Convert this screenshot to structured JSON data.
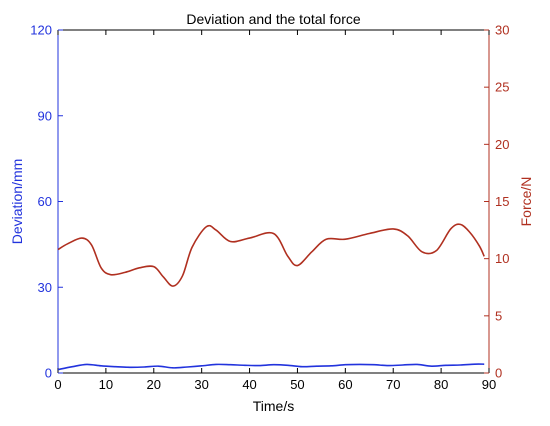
{
  "chart_data": {
    "type": "line",
    "title": "Deviation and the total force",
    "xlabel": "Time/s",
    "ylabel_left": "Deviation/mm",
    "ylabel_right": "Force/N",
    "xlim": [
      0,
      90
    ],
    "ylim_left": [
      0,
      120
    ],
    "ylim_right": [
      0,
      30
    ],
    "x_ticks": [
      0,
      10,
      20,
      30,
      40,
      50,
      60,
      70,
      80,
      90
    ],
    "y_left_ticks": [
      0,
      30,
      60,
      90,
      120
    ],
    "y_right_ticks": [
      0,
      5,
      10,
      15,
      20,
      25,
      30
    ],
    "grid": false,
    "colors": {
      "left_axis": "#2233dd",
      "right_axis": "#b03020",
      "deviation": "#2233dd",
      "force": "#b03020"
    },
    "series": [
      {
        "axis": "left",
        "x": [
          0,
          3,
          6,
          9,
          12,
          15,
          18,
          21,
          24,
          27,
          30,
          33,
          36,
          39,
          42,
          45,
          48,
          51,
          54,
          57,
          60,
          63,
          66,
          69,
          72,
          75,
          78,
          81,
          84,
          87,
          89
        ],
        "values": [
          1.2,
          2.2,
          3.0,
          2.5,
          2.2,
          2.0,
          2.1,
          2.4,
          1.8,
          2.1,
          2.5,
          3.0,
          2.9,
          2.7,
          2.6,
          2.9,
          2.7,
          2.2,
          2.4,
          2.5,
          2.9,
          3.0,
          2.9,
          2.6,
          2.8,
          3.0,
          2.4,
          2.7,
          2.8,
          3.1,
          3.1
        ]
      },
      {
        "axis": "right",
        "x": [
          0,
          2,
          5,
          7,
          9,
          11,
          14,
          17,
          20,
          22,
          24,
          26,
          28,
          31,
          33,
          36,
          40,
          45,
          48,
          50,
          53,
          56,
          60,
          65,
          70,
          73,
          76,
          79,
          82,
          84,
          86,
          88,
          89
        ],
        "values": [
          10.8,
          11.3,
          11.8,
          11.2,
          9.2,
          8.6,
          8.8,
          9.2,
          9.3,
          8.4,
          7.6,
          8.5,
          11.0,
          12.8,
          12.5,
          11.5,
          11.8,
          12.2,
          10.2,
          9.4,
          10.6,
          11.7,
          11.7,
          12.2,
          12.6,
          12.0,
          10.6,
          10.7,
          12.6,
          13.0,
          12.3,
          11.1,
          10.2
        ]
      }
    ]
  }
}
